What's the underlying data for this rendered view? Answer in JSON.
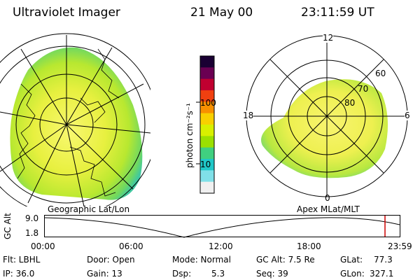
{
  "header": {
    "instrument": "Ultraviolet Imager",
    "date": "21 May 00",
    "time": "23:11:59 UT"
  },
  "geo_panel": {
    "label": "Geographic Lat/Lon"
  },
  "polar_panel": {
    "label": "Apex MLat/MLT",
    "mlt_labels": {
      "top": "12",
      "left": "18",
      "right": "6",
      "bottom": "0"
    },
    "mlat_labels": [
      "60",
      "70",
      "80"
    ]
  },
  "colorbar": {
    "unit_label": "photon cm⁻²s⁻¹",
    "ticks": [
      "100",
      "10"
    ],
    "colors": [
      "#1a0033",
      "#6a0052",
      "#c00030",
      "#f04010",
      "#f89000",
      "#f8d000",
      "#d8f000",
      "#9be000",
      "#40d080",
      "#20c8c8",
      "#80e0e8",
      "#f0f0f0"
    ]
  },
  "altitude_plot": {
    "axis_label": "GC Alt",
    "y_ticks": [
      "9.0",
      "1.8"
    ],
    "x_ticks": [
      "00:00",
      "06:00",
      "12:00",
      "18:00",
      "23:59"
    ],
    "current_time_marker_color": "#cc0000"
  },
  "info": {
    "row1": [
      {
        "key": "Flt: LBHL"
      },
      {
        "key": "Door: Open"
      },
      {
        "key": "Mode: Normal"
      },
      {
        "key": "GC Alt: 7.5 Re"
      },
      {
        "key": "GLat:",
        "value": "77.3"
      }
    ],
    "row2": [
      {
        "key": "IP: 36.0"
      },
      {
        "key": "Gain: 13"
      },
      {
        "key": "Dsp:",
        "value": "5.3"
      },
      {
        "key": "Seq: 39"
      },
      {
        "key": "GLon:",
        "value": "327.1"
      }
    ]
  }
}
